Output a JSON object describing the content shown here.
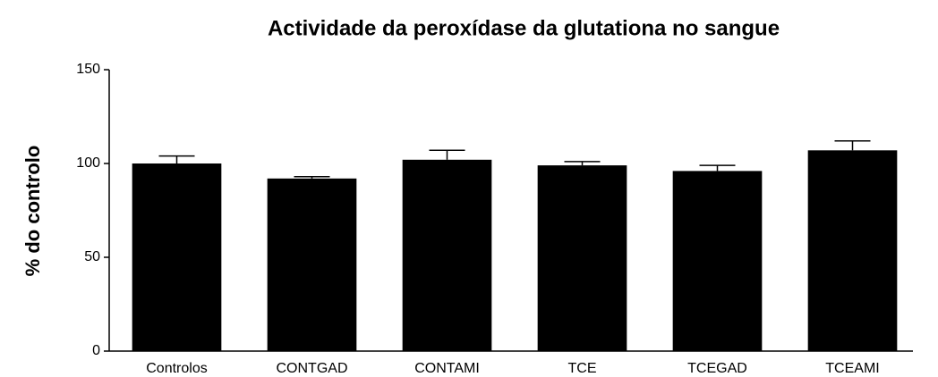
{
  "chart_data": {
    "type": "bar",
    "title": "Actividade da peroxídase da glutationa no sangue",
    "y_label": "% do controlo",
    "categories": [
      "Controlos",
      "CONTGAD",
      "CONTAMI",
      "TCE",
      "TCEGAD",
      "TCEAMI"
    ],
    "values": [
      100,
      92,
      102,
      99,
      96,
      107
    ],
    "errors": [
      4,
      1,
      5,
      2,
      3,
      5
    ],
    "color": "#000000",
    "ylim": [
      0,
      150
    ],
    "yticks": [
      0,
      50,
      100,
      150
    ],
    "grid": false
  }
}
